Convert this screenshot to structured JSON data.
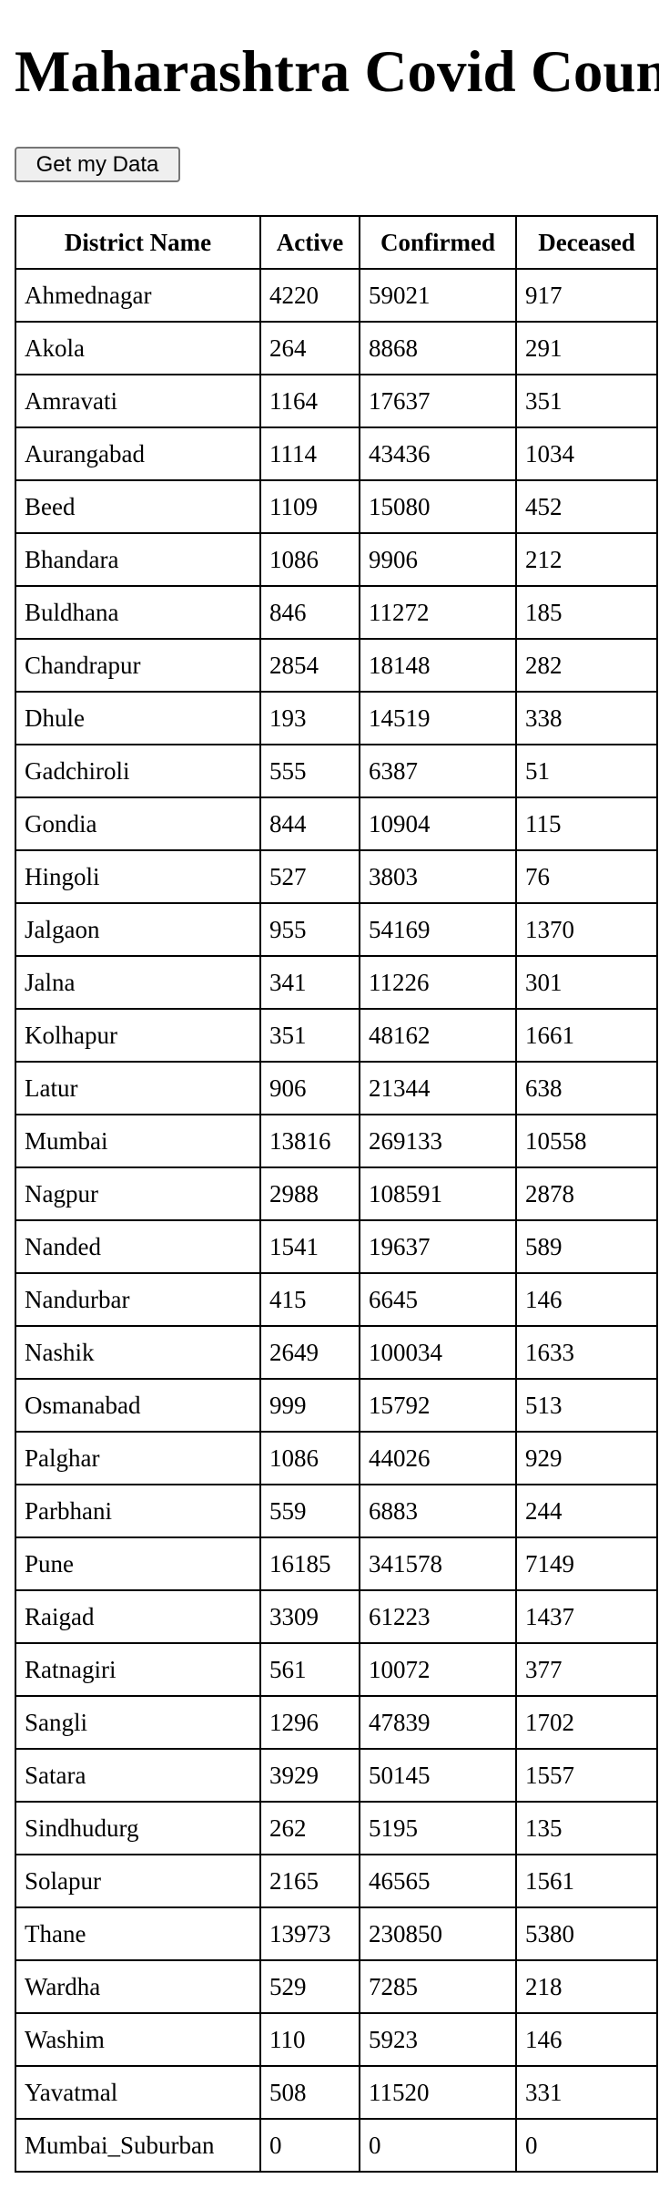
{
  "page": {
    "title": "Maharashtra Covid Count"
  },
  "button": {
    "label": "Get my Data"
  },
  "table": {
    "headers": [
      "District Name",
      "Active",
      "Confirmed",
      "Deceased"
    ],
    "rows": [
      [
        "Ahmednagar",
        "4220",
        "59021",
        "917"
      ],
      [
        "Akola",
        "264",
        "8868",
        "291"
      ],
      [
        "Amravati",
        "1164",
        "17637",
        "351"
      ],
      [
        "Aurangabad",
        "1114",
        "43436",
        "1034"
      ],
      [
        "Beed",
        "1109",
        "15080",
        "452"
      ],
      [
        "Bhandara",
        "1086",
        "9906",
        "212"
      ],
      [
        "Buldhana",
        "846",
        "11272",
        "185"
      ],
      [
        "Chandrapur",
        "2854",
        "18148",
        "282"
      ],
      [
        "Dhule",
        "193",
        "14519",
        "338"
      ],
      [
        "Gadchiroli",
        "555",
        "6387",
        "51"
      ],
      [
        "Gondia",
        "844",
        "10904",
        "115"
      ],
      [
        "Hingoli",
        "527",
        "3803",
        "76"
      ],
      [
        "Jalgaon",
        "955",
        "54169",
        "1370"
      ],
      [
        "Jalna",
        "341",
        "11226",
        "301"
      ],
      [
        "Kolhapur",
        "351",
        "48162",
        "1661"
      ],
      [
        "Latur",
        "906",
        "21344",
        "638"
      ],
      [
        "Mumbai",
        "13816",
        "269133",
        "10558"
      ],
      [
        "Nagpur",
        "2988",
        "108591",
        "2878"
      ],
      [
        "Nanded",
        "1541",
        "19637",
        "589"
      ],
      [
        "Nandurbar",
        "415",
        "6645",
        "146"
      ],
      [
        "Nashik",
        "2649",
        "100034",
        "1633"
      ],
      [
        "Osmanabad",
        "999",
        "15792",
        "513"
      ],
      [
        "Palghar",
        "1086",
        "44026",
        "929"
      ],
      [
        "Parbhani",
        "559",
        "6883",
        "244"
      ],
      [
        "Pune",
        "16185",
        "341578",
        "7149"
      ],
      [
        "Raigad",
        "3309",
        "61223",
        "1437"
      ],
      [
        "Ratnagiri",
        "561",
        "10072",
        "377"
      ],
      [
        "Sangli",
        "1296",
        "47839",
        "1702"
      ],
      [
        "Satara",
        "3929",
        "50145",
        "1557"
      ],
      [
        "Sindhudurg",
        "262",
        "5195",
        "135"
      ],
      [
        "Solapur",
        "2165",
        "46565",
        "1561"
      ],
      [
        "Thane",
        "13973",
        "230850",
        "5380"
      ],
      [
        "Wardha",
        "529",
        "7285",
        "218"
      ],
      [
        "Washim",
        "110",
        "5923",
        "146"
      ],
      [
        "Yavatmal",
        "508",
        "11520",
        "331"
      ],
      [
        "Mumbai_Suburban",
        "0",
        "0",
        "0"
      ]
    ]
  }
}
